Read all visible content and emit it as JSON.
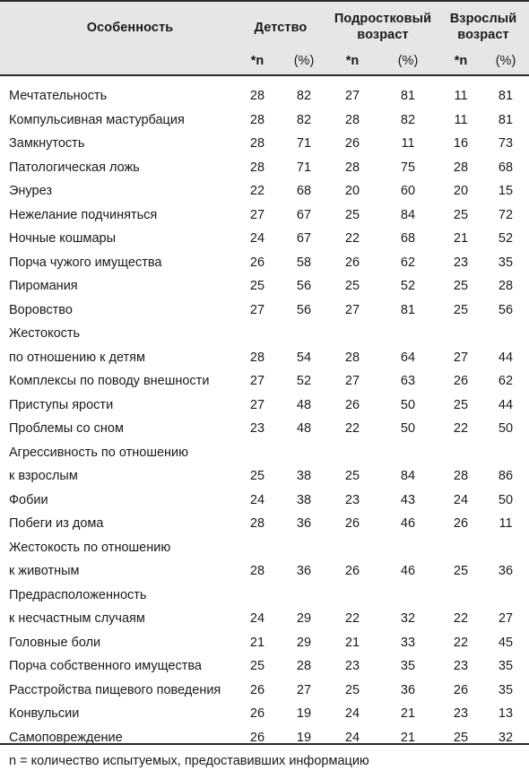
{
  "headers": {
    "feature": "Особенность",
    "childhood": "Детство",
    "teen_line1": "Подростковый",
    "teen_line2": "возраст",
    "adult_line1": "Взрослый",
    "adult_line2": "возраст",
    "n": "*n",
    "pct": "(%)"
  },
  "rows": [
    {
      "label": [
        "Мечтательность"
      ],
      "values": [
        "28",
        "82",
        "27",
        "81",
        "11",
        "81"
      ]
    },
    {
      "label": [
        "Компульсивная мастурбация"
      ],
      "values": [
        "28",
        "82",
        "28",
        "82",
        "11",
        "81"
      ]
    },
    {
      "label": [
        "Замкнутость"
      ],
      "values": [
        "28",
        "71",
        "26",
        "11",
        "16",
        "73"
      ]
    },
    {
      "label": [
        "Патологическая ложь"
      ],
      "values": [
        "28",
        "71",
        "28",
        "75",
        "28",
        "68"
      ]
    },
    {
      "label": [
        "Энурез"
      ],
      "values": [
        "22",
        "68",
        "20",
        "60",
        "20",
        "15"
      ]
    },
    {
      "label": [
        "Нежелание подчиняться"
      ],
      "values": [
        "27",
        "67",
        "25",
        "84",
        "25",
        "72"
      ]
    },
    {
      "label": [
        "Ночные кошмары"
      ],
      "values": [
        "24",
        "67",
        "22",
        "68",
        "21",
        "52"
      ]
    },
    {
      "label": [
        "Порча чужого имущества"
      ],
      "values": [
        "26",
        "58",
        "26",
        "62",
        "23",
        "35"
      ]
    },
    {
      "label": [
        "Пиромания"
      ],
      "values": [
        "25",
        "56",
        "25",
        "52",
        "25",
        "28"
      ]
    },
    {
      "label": [
        "Воровство"
      ],
      "values": [
        "27",
        "56",
        "27",
        "81",
        "25",
        "56"
      ]
    },
    {
      "label": [
        "Жестокость",
        "по отношению к детям"
      ],
      "values": [
        "28",
        "54",
        "28",
        "64",
        "27",
        "44"
      ]
    },
    {
      "label": [
        "Комплексы по поводу внешности"
      ],
      "values": [
        "27",
        "52",
        "27",
        "63",
        "26",
        "62"
      ]
    },
    {
      "label": [
        "Приступы ярости"
      ],
      "values": [
        "27",
        "48",
        "26",
        "50",
        "25",
        "44"
      ]
    },
    {
      "label": [
        "Проблемы со сном"
      ],
      "values": [
        "23",
        "48",
        "22",
        "50",
        "22",
        "50"
      ]
    },
    {
      "label": [
        "Агрессивность по отношению",
        "к взрослым"
      ],
      "values": [
        "25",
        "38",
        "25",
        "84",
        "28",
        "86"
      ]
    },
    {
      "label": [
        "Фобии"
      ],
      "values": [
        "24",
        "38",
        "23",
        "43",
        "24",
        "50"
      ]
    },
    {
      "label": [
        "Побеги из дома"
      ],
      "values": [
        "28",
        "36",
        "26",
        "46",
        "26",
        "11"
      ]
    },
    {
      "label": [
        "Жестокость по отношению",
        "к животным"
      ],
      "values": [
        "28",
        "36",
        "26",
        "46",
        "25",
        "36"
      ]
    },
    {
      "label": [
        "Предрасположенность",
        "к несчастным случаям"
      ],
      "values": [
        "24",
        "29",
        "22",
        "32",
        "22",
        "27"
      ]
    },
    {
      "label": [
        "Головные боли"
      ],
      "values": [
        "21",
        "29",
        "21",
        "33",
        "22",
        "45"
      ]
    },
    {
      "label": [
        "Порча собственного имущества"
      ],
      "values": [
        "25",
        "28",
        "23",
        "35",
        "23",
        "35"
      ]
    },
    {
      "label": [
        "Расстройства пищевого поведения"
      ],
      "values": [
        "26",
        "27",
        "25",
        "36",
        "26",
        "35"
      ]
    },
    {
      "label": [
        "Конвульсии"
      ],
      "values": [
        "26",
        "19",
        "24",
        "21",
        "23",
        "13"
      ]
    },
    {
      "label": [
        "Самоповреждение"
      ],
      "values": [
        "26",
        "19",
        "24",
        "21",
        "25",
        "32"
      ]
    }
  ],
  "footnote": "n = количество испытуемых, предоставивших информацию"
}
